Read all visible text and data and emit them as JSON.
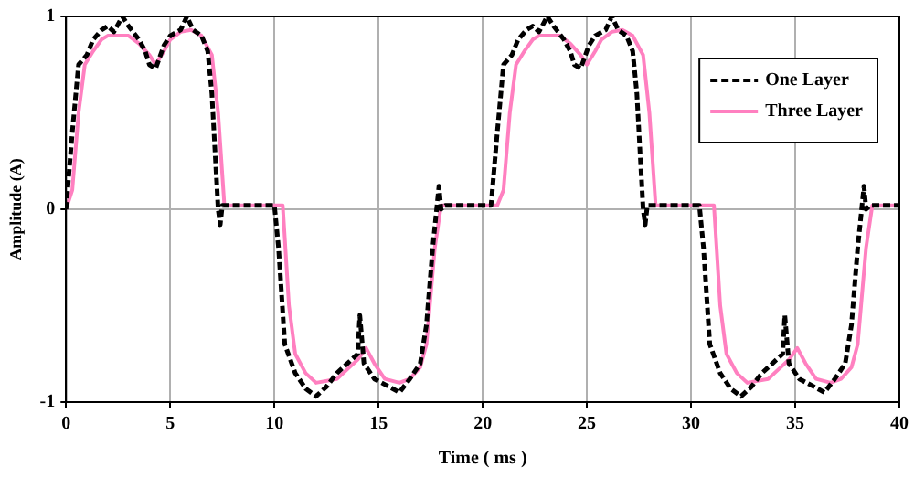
{
  "chart_data": {
    "type": "line",
    "xlabel": "Time ( ms )",
    "ylabel": "Amplitude (A)",
    "xlim": [
      0,
      40
    ],
    "xticks": [
      0,
      5,
      10,
      15,
      20,
      25,
      30,
      35,
      40
    ],
    "ylim": [
      -1,
      1
    ],
    "yticks": [
      -1,
      0,
      1
    ],
    "grid": true,
    "legend": "top right",
    "marker": "none",
    "series": [
      {
        "name": "One Layer",
        "color": "#000000",
        "line_style": "dashed",
        "x": [
          0,
          0.3,
          0.6,
          1.0,
          1.3,
          1.7,
          2.0,
          2.3,
          2.7,
          3.0,
          3.5,
          3.8,
          4.0,
          4.3,
          4.7,
          5.0,
          5.5,
          5.8,
          6.1,
          6.5,
          6.8,
          7.0,
          7.3,
          7.4,
          7.5,
          10.0,
          10.2,
          10.5,
          11.0,
          11.5,
          12.0,
          12.5,
          13.0,
          13.5,
          14.0,
          14.1,
          14.3,
          14.8,
          15.5,
          16.0,
          16.5,
          17.0,
          17.3,
          17.6,
          17.9,
          18.0,
          18.2,
          20.4,
          20.7,
          21.0,
          21.4,
          21.7,
          22.1,
          22.4,
          22.7,
          23.1,
          23.4,
          23.9,
          24.2,
          24.4,
          24.7,
          25.1,
          25.4,
          25.9,
          26.2,
          26.5,
          26.9,
          27.2,
          27.4,
          27.7,
          27.8,
          27.9,
          30.4,
          30.6,
          30.9,
          31.4,
          31.9,
          32.4,
          32.9,
          33.4,
          33.9,
          34.4,
          34.5,
          34.7,
          35.2,
          35.9,
          36.4,
          36.9,
          37.4,
          37.7,
          38.0,
          38.3,
          38.4,
          38.6,
          40
        ],
        "values": [
          0,
          0.4,
          0.75,
          0.8,
          0.88,
          0.93,
          0.95,
          0.92,
          1.0,
          0.95,
          0.88,
          0.82,
          0.75,
          0.73,
          0.85,
          0.9,
          0.93,
          1.0,
          0.93,
          0.9,
          0.82,
          0.6,
          0.0,
          -0.08,
          0.02,
          0.02,
          -0.2,
          -0.7,
          -0.85,
          -0.93,
          -0.97,
          -0.92,
          -0.85,
          -0.8,
          -0.75,
          -0.55,
          -0.8,
          -0.88,
          -0.92,
          -0.95,
          -0.88,
          -0.8,
          -0.6,
          -0.2,
          0.12,
          0.0,
          0.02,
          0.02,
          0.4,
          0.75,
          0.8,
          0.88,
          0.93,
          0.95,
          0.92,
          1.0,
          0.95,
          0.88,
          0.82,
          0.75,
          0.73,
          0.85,
          0.9,
          0.93,
          1.0,
          0.93,
          0.9,
          0.82,
          0.6,
          0.0,
          -0.08,
          0.02,
          0.02,
          -0.2,
          -0.7,
          -0.85,
          -0.93,
          -0.97,
          -0.92,
          -0.85,
          -0.8,
          -0.75,
          -0.55,
          -0.8,
          -0.88,
          -0.92,
          -0.95,
          -0.88,
          -0.8,
          -0.6,
          -0.2,
          0.12,
          0.0,
          0.02,
          0.02
        ]
      },
      {
        "name": "Three Layer",
        "color": "#ff80c0",
        "line_style": "solid",
        "x": [
          0,
          0.3,
          0.6,
          0.9,
          1.3,
          1.7,
          2.0,
          3.0,
          3.5,
          4.0,
          4.3,
          4.7,
          5.0,
          5.5,
          6.0,
          6.5,
          7.0,
          7.3,
          7.6,
          10.4,
          10.7,
          11.0,
          11.5,
          12.0,
          13.0,
          13.5,
          14.0,
          14.4,
          14.8,
          15.3,
          16.0,
          16.5,
          17.0,
          17.3,
          17.7,
          18.0,
          20.7,
          21.0,
          21.3,
          21.6,
          22.0,
          22.4,
          22.7,
          23.7,
          24.2,
          24.7,
          25.0,
          25.4,
          25.7,
          26.2,
          26.7,
          27.2,
          27.7,
          28.0,
          28.3,
          31.1,
          31.4,
          31.7,
          32.2,
          32.7,
          33.7,
          34.2,
          34.7,
          35.1,
          35.5,
          36.0,
          36.7,
          37.2,
          37.7,
          38.0,
          38.4,
          38.7,
          40
        ],
        "values": [
          0,
          0.1,
          0.5,
          0.75,
          0.82,
          0.88,
          0.9,
          0.9,
          0.86,
          0.8,
          0.75,
          0.82,
          0.88,
          0.92,
          0.93,
          0.9,
          0.8,
          0.5,
          0.02,
          0.02,
          -0.5,
          -0.75,
          -0.85,
          -0.9,
          -0.88,
          -0.83,
          -0.78,
          -0.72,
          -0.8,
          -0.88,
          -0.9,
          -0.88,
          -0.82,
          -0.7,
          -0.2,
          0.02,
          0.02,
          0.1,
          0.5,
          0.75,
          0.82,
          0.88,
          0.9,
          0.9,
          0.86,
          0.8,
          0.75,
          0.82,
          0.88,
          0.92,
          0.93,
          0.9,
          0.8,
          0.5,
          0.02,
          0.02,
          -0.5,
          -0.75,
          -0.85,
          -0.9,
          -0.88,
          -0.83,
          -0.78,
          -0.72,
          -0.8,
          -0.88,
          -0.9,
          -0.88,
          -0.82,
          -0.7,
          -0.2,
          0.02,
          0.02
        ]
      }
    ]
  }
}
